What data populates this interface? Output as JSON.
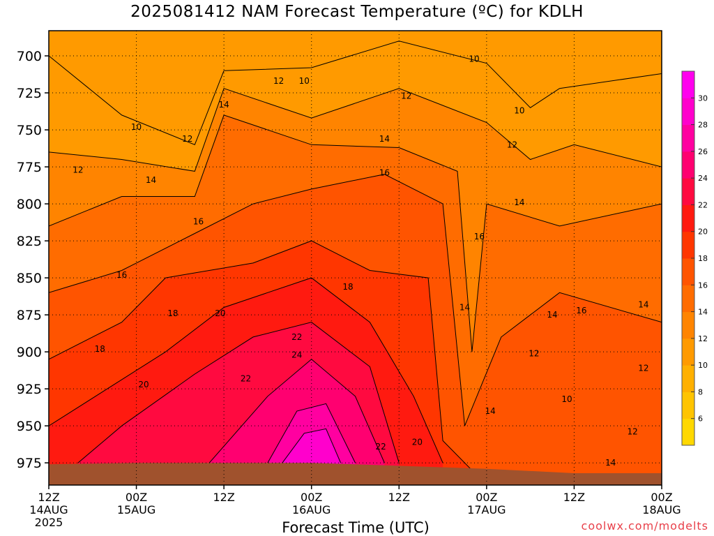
{
  "chart_data": {
    "type": "heatmap",
    "title": "2025081412 NAM Forecast Temperature (ºC) for KDLH",
    "xlabel": "Forecast Time (UTC)",
    "ylabel": "",
    "credit": "coolwx.com/modelts",
    "x_range_hours": [
      0,
      84
    ],
    "y_range_hpa": [
      683,
      990
    ],
    "y_ticks": [
      "700",
      "725",
      "750",
      "775",
      "800",
      "825",
      "850",
      "875",
      "900",
      "925",
      "950",
      "975"
    ],
    "x_ticks": [
      {
        "hour": 0,
        "label": "12Z",
        "date": "14AUG",
        "year": "2025"
      },
      {
        "hour": 12,
        "label": "00Z",
        "date": "15AUG",
        "year": ""
      },
      {
        "hour": 24,
        "label": "12Z",
        "date": "",
        "year": ""
      },
      {
        "hour": 36,
        "label": "00Z",
        "date": "16AUG",
        "year": ""
      },
      {
        "hour": 48,
        "label": "12Z",
        "date": "",
        "year": ""
      },
      {
        "hour": 60,
        "label": "00Z",
        "date": "17AUG",
        "year": ""
      },
      {
        "hour": 72,
        "label": "12Z",
        "date": "",
        "year": ""
      },
      {
        "hour": 84,
        "label": "00Z",
        "date": "18AUG",
        "year": ""
      }
    ],
    "colorbar": {
      "ticks": [
        "6",
        "8",
        "10",
        "12",
        "14",
        "16",
        "18",
        "20",
        "22",
        "24",
        "26",
        "28",
        "30"
      ],
      "range": [
        4,
        32
      ],
      "colors": [
        "#ffd800",
        "#ffc400",
        "#ffb000",
        "#ff9a00",
        "#ff8400",
        "#ff6c00",
        "#ff5400",
        "#ff3600",
        "#ff1a10",
        "#ff0a40",
        "#ff0070",
        "#ff00a0",
        "#ff00cc",
        "#ff00ee"
      ]
    },
    "contour_labels": [
      {
        "text": "10",
        "hour": 58.3,
        "hpa": 702
      },
      {
        "text": "10",
        "hour": 35.0,
        "hpa": 717
      },
      {
        "text": "12",
        "hour": 31.5,
        "hpa": 717
      },
      {
        "text": "12",
        "hour": 49.0,
        "hpa": 727
      },
      {
        "text": "14",
        "hour": 24.0,
        "hpa": 733
      },
      {
        "text": "10",
        "hour": 64.5,
        "hpa": 737
      },
      {
        "text": "10",
        "hour": 12.0,
        "hpa": 748
      },
      {
        "text": "12",
        "hour": 19.0,
        "hpa": 756
      },
      {
        "text": "14",
        "hour": 46.0,
        "hpa": 756
      },
      {
        "text": "12",
        "hour": 63.5,
        "hpa": 760
      },
      {
        "text": "12",
        "hour": 4.0,
        "hpa": 777
      },
      {
        "text": "16",
        "hour": 46.0,
        "hpa": 779
      },
      {
        "text": "14",
        "hour": 14.0,
        "hpa": 784
      },
      {
        "text": "14",
        "hour": 64.5,
        "hpa": 799
      },
      {
        "text": "16",
        "hour": 20.5,
        "hpa": 812
      },
      {
        "text": "16",
        "hour": 59.0,
        "hpa": 822
      },
      {
        "text": "16",
        "hour": 10.0,
        "hpa": 848
      },
      {
        "text": "18",
        "hour": 41.0,
        "hpa": 856
      },
      {
        "text": "14",
        "hour": 57.0,
        "hpa": 870
      },
      {
        "text": "16",
        "hour": 73.0,
        "hpa": 872
      },
      {
        "text": "14",
        "hour": 81.5,
        "hpa": 868
      },
      {
        "text": "18",
        "hour": 17.0,
        "hpa": 874
      },
      {
        "text": "20",
        "hour": 23.5,
        "hpa": 874
      },
      {
        "text": "14",
        "hour": 69.0,
        "hpa": 875
      },
      {
        "text": "22",
        "hour": 34.0,
        "hpa": 890
      },
      {
        "text": "18",
        "hour": 7.0,
        "hpa": 898
      },
      {
        "text": "12",
        "hour": 66.5,
        "hpa": 901
      },
      {
        "text": "24",
        "hour": 34.0,
        "hpa": 902
      },
      {
        "text": "12",
        "hour": 81.5,
        "hpa": 911
      },
      {
        "text": "22",
        "hour": 27.0,
        "hpa": 918
      },
      {
        "text": "20",
        "hour": 13.0,
        "hpa": 922
      },
      {
        "text": "10",
        "hour": 71.0,
        "hpa": 932
      },
      {
        "text": "14",
        "hour": 60.5,
        "hpa": 940
      },
      {
        "text": "12",
        "hour": 80.0,
        "hpa": 954
      },
      {
        "text": "20",
        "hour": 50.5,
        "hpa": 961
      },
      {
        "text": "22",
        "hour": 45.5,
        "hpa": 964
      },
      {
        "text": "14",
        "hour": 77.0,
        "hpa": 975
      }
    ],
    "surface_pressure_hpa": [
      {
        "hour": 0,
        "hpa": 976
      },
      {
        "hour": 12,
        "hpa": 975
      },
      {
        "hour": 24,
        "hpa": 975
      },
      {
        "hour": 36,
        "hpa": 975
      },
      {
        "hour": 48,
        "hpa": 977
      },
      {
        "hour": 60,
        "hpa": 979
      },
      {
        "hour": 72,
        "hpa": 982
      },
      {
        "hour": 84,
        "hpa": 982
      }
    ],
    "temperature_fields": [
      {
        "value": 10,
        "profile": [
          {
            "hour": 0,
            "hpa": 700
          },
          {
            "hour": 10,
            "hpa": 740
          },
          {
            "hour": 20,
            "hpa": 760
          },
          {
            "hour": 24,
            "hpa": 710
          },
          {
            "hour": 36,
            "hpa": 708
          },
          {
            "hour": 48,
            "hpa": 690
          },
          {
            "hour": 60,
            "hpa": 705
          },
          {
            "hour": 66,
            "hpa": 735
          },
          {
            "hour": 70,
            "hpa": 722
          },
          {
            "hour": 84,
            "hpa": 712
          }
        ]
      },
      {
        "value": 12,
        "profile": [
          {
            "hour": 0,
            "hpa": 765
          },
          {
            "hour": 10,
            "hpa": 770
          },
          {
            "hour": 20,
            "hpa": 778
          },
          {
            "hour": 24,
            "hpa": 722
          },
          {
            "hour": 36,
            "hpa": 742
          },
          {
            "hour": 48,
            "hpa": 722
          },
          {
            "hour": 60,
            "hpa": 745
          },
          {
            "hour": 66,
            "hpa": 770
          },
          {
            "hour": 72,
            "hpa": 760
          },
          {
            "hour": 84,
            "hpa": 775
          }
        ]
      },
      {
        "value": 14,
        "profile": [
          {
            "hour": 0,
            "hpa": 815
          },
          {
            "hour": 10,
            "hpa": 795
          },
          {
            "hour": 20,
            "hpa": 795
          },
          {
            "hour": 24,
            "hpa": 740
          },
          {
            "hour": 36,
            "hpa": 760
          },
          {
            "hour": 48,
            "hpa": 762
          },
          {
            "hour": 56,
            "hpa": 778
          },
          {
            "hour": 58,
            "hpa": 900
          },
          {
            "hour": 60,
            "hpa": 800
          },
          {
            "hour": 70,
            "hpa": 815
          },
          {
            "hour": 84,
            "hpa": 800
          }
        ]
      },
      {
        "value": 16,
        "profile": [
          {
            "hour": 0,
            "hpa": 860
          },
          {
            "hour": 10,
            "hpa": 845
          },
          {
            "hour": 20,
            "hpa": 820
          },
          {
            "hour": 28,
            "hpa": 800
          },
          {
            "hour": 36,
            "hpa": 790
          },
          {
            "hour": 46,
            "hpa": 780
          },
          {
            "hour": 54,
            "hpa": 800
          },
          {
            "hour": 57,
            "hpa": 950
          },
          {
            "hour": 62,
            "hpa": 890
          },
          {
            "hour": 70,
            "hpa": 860
          },
          {
            "hour": 84,
            "hpa": 880
          }
        ]
      },
      {
        "value": 18,
        "profile": [
          {
            "hour": 0,
            "hpa": 905
          },
          {
            "hour": 10,
            "hpa": 880
          },
          {
            "hour": 16,
            "hpa": 850
          },
          {
            "hour": 28,
            "hpa": 840
          },
          {
            "hour": 36,
            "hpa": 825
          },
          {
            "hour": 44,
            "hpa": 845
          },
          {
            "hour": 52,
            "hpa": 850
          },
          {
            "hour": 54,
            "hpa": 960
          },
          {
            "hour": 58,
            "hpa": 980
          }
        ]
      },
      {
        "value": 20,
        "profile": [
          {
            "hour": 0,
            "hpa": 950
          },
          {
            "hour": 8,
            "hpa": 925
          },
          {
            "hour": 16,
            "hpa": 900
          },
          {
            "hour": 24,
            "hpa": 870
          },
          {
            "hour": 36,
            "hpa": 850
          },
          {
            "hour": 44,
            "hpa": 880
          },
          {
            "hour": 50,
            "hpa": 930
          },
          {
            "hour": 54,
            "hpa": 975
          }
        ]
      },
      {
        "value": 22,
        "profile": [
          {
            "hour": 4,
            "hpa": 975
          },
          {
            "hour": 10,
            "hpa": 950
          },
          {
            "hour": 20,
            "hpa": 915
          },
          {
            "hour": 28,
            "hpa": 890
          },
          {
            "hour": 36,
            "hpa": 880
          },
          {
            "hour": 44,
            "hpa": 910
          },
          {
            "hour": 48,
            "hpa": 975
          }
        ]
      },
      {
        "value": 24,
        "profile": [
          {
            "hour": 22,
            "hpa": 975
          },
          {
            "hour": 30,
            "hpa": 930
          },
          {
            "hour": 36,
            "hpa": 905
          },
          {
            "hour": 42,
            "hpa": 930
          },
          {
            "hour": 46,
            "hpa": 975
          }
        ]
      },
      {
        "value": 26,
        "profile": [
          {
            "hour": 30,
            "hpa": 975
          },
          {
            "hour": 34,
            "hpa": 940
          },
          {
            "hour": 38,
            "hpa": 935
          },
          {
            "hour": 42,
            "hpa": 975
          }
        ]
      },
      {
        "value": 28,
        "profile": [
          {
            "hour": 32,
            "hpa": 975
          },
          {
            "hour": 35,
            "hpa": 955
          },
          {
            "hour": 38,
            "hpa": 952
          },
          {
            "hour": 40,
            "hpa": 975
          }
        ]
      }
    ],
    "grid": true,
    "legend": "right"
  }
}
